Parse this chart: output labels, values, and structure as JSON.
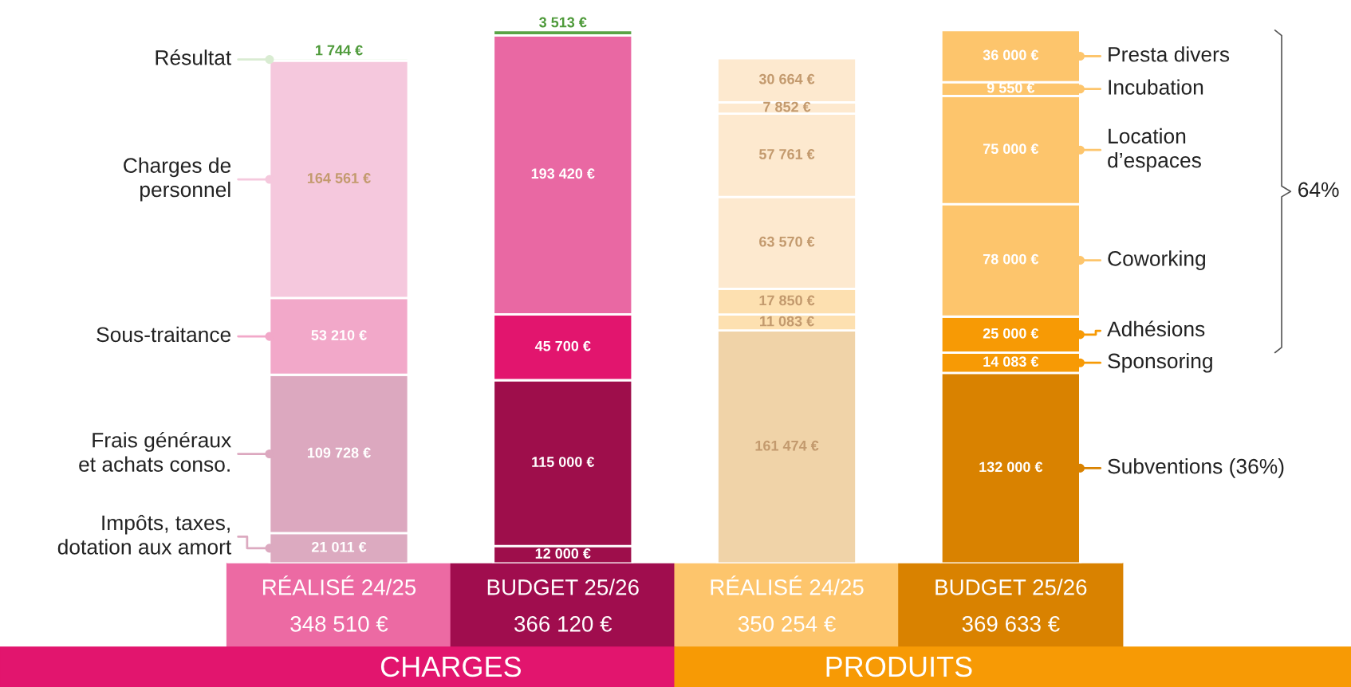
{
  "chart_data": {
    "type": "bar",
    "stacked": true,
    "legend": "right",
    "grid": false,
    "categories": [
      "RÉALISÉ 24/25\n348 510 €",
      "BUDGET 25/26\n366 120 €",
      "RÉALISÉ 24/25\n350 254 €",
      "BUDGET 25/26\n369 633 €"
    ],
    "series": [
      {
        "name": "Impôts, taxes,\ndotation aux amort",
        "colors": [
          "#dcaac0",
          "#9e0e4b",
          null,
          null
        ],
        "values": [
          21011,
          12000,
          null,
          null
        ],
        "value_labels": [
          "21 011 €",
          "12 000 €",
          null,
          null
        ]
      },
      {
        "name": "Frais généraux\net achats conso.",
        "colors": [
          "#dca8bf",
          "#9e0e4b",
          null,
          null
        ],
        "values": [
          109728,
          115000,
          null,
          null
        ],
        "value_labels": [
          "109 728 €",
          "115 000 €",
          null,
          null
        ]
      },
      {
        "name": "Sous-traitance",
        "colors": [
          "#f2a8c9",
          "#e2156e",
          null,
          null
        ],
        "values": [
          53210,
          45700,
          null,
          null
        ],
        "value_labels": [
          "53 210 €",
          "45 700 €",
          null,
          null
        ]
      },
      {
        "name": "Charges de\npersonnel",
        "colors": [
          "#f5c8dd",
          "#e968a3",
          null,
          null
        ],
        "values": [
          164561,
          193420,
          null,
          null
        ],
        "value_labels": [
          "164 561 €",
          "193 420 €",
          null,
          null
        ]
      },
      {
        "name": "Résultat",
        "colors": [
          "#d9ecd2",
          "#5aa446",
          null,
          null
        ],
        "values": [
          1744,
          3513,
          null,
          null
        ],
        "value_labels": [
          "1 744 €",
          "3 513 €",
          null,
          null
        ]
      },
      {
        "name": "Subventions (36%)",
        "colors": [
          null,
          null,
          "#f0d3a8",
          "#d98200"
        ],
        "values": [
          null,
          null,
          161474,
          132000
        ],
        "value_labels": [
          null,
          null,
          "161 474 €",
          "132 000 €"
        ]
      },
      {
        "name": "Sponsoring",
        "colors": [
          null,
          null,
          "#fde0b0",
          "#f79a05"
        ],
        "values": [
          null,
          null,
          11083,
          14083
        ],
        "value_labels": [
          null,
          null,
          "11 083 €",
          "14 083 €"
        ]
      },
      {
        "name": "Adhésions",
        "colors": [
          null,
          null,
          "#fde0b0",
          "#f79a05"
        ],
        "values": [
          null,
          null,
          17850,
          25000
        ],
        "value_labels": [
          null,
          null,
          "17 850 €",
          "25 000 €"
        ]
      },
      {
        "name": "Coworking",
        "colors": [
          null,
          null,
          "#fde9cf",
          "#fdc56c"
        ],
        "values": [
          null,
          null,
          63570,
          78000
        ],
        "value_labels": [
          null,
          null,
          "63 570 €",
          "78 000 €"
        ]
      },
      {
        "name": "Location\nd’espaces",
        "colors": [
          null,
          null,
          "#fde9cf",
          "#fdc56c"
        ],
        "values": [
          null,
          null,
          57761,
          75000
        ],
        "value_labels": [
          null,
          null,
          "57 761 €",
          "75 000 €"
        ]
      },
      {
        "name": "Incubation",
        "colors": [
          null,
          null,
          "#fde9cf",
          "#fdc56c"
        ],
        "values": [
          null,
          null,
          7852,
          9550
        ],
        "value_labels": [
          null,
          null,
          "7 852 €",
          "9 550 €"
        ]
      },
      {
        "name": "Presta divers",
        "colors": [
          null,
          null,
          "#fde9cf",
          "#fdc56c"
        ],
        "values": [
          null,
          null,
          30664,
          36000
        ],
        "value_labels": [
          null,
          null,
          "30 664 €",
          "36 000 €"
        ]
      }
    ],
    "annotations": [
      "CHARGES",
      "PRODUITS",
      "64%"
    ]
  }
}
